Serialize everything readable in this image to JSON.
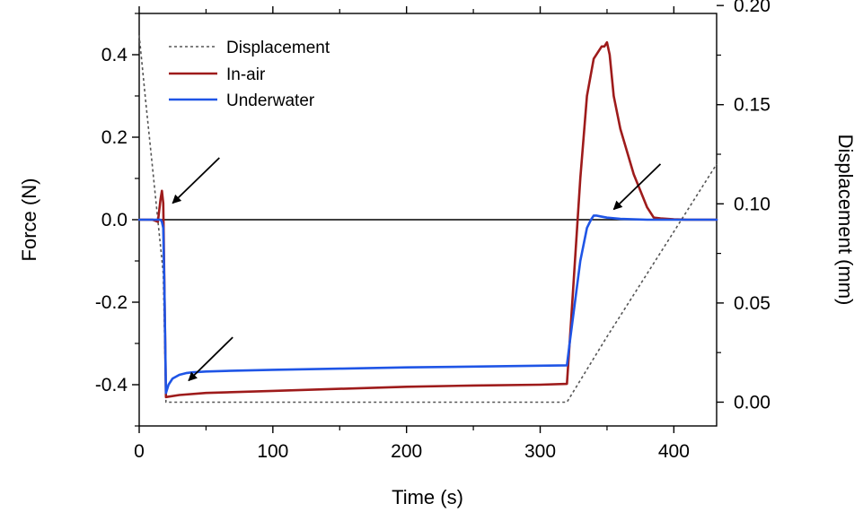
{
  "chart_data": {
    "type": "line",
    "xlabel": "Time (s)",
    "ylabel": "Force (N)",
    "y2label": "Displacement (mm)",
    "xlim": [
      0,
      432
    ],
    "ylim": [
      -0.5,
      0.5
    ],
    "y2lim": [
      -0.012,
      0.196
    ],
    "xticks": [
      0,
      100,
      200,
      300,
      400
    ],
    "xtick_labels": [
      "0",
      "100",
      "200",
      "300",
      "400"
    ],
    "yticks": [
      0.4,
      0.2,
      0.0,
      -0.2,
      -0.4
    ],
    "ytick_labels": [
      "0.4",
      "0.2",
      "0.0",
      "-0.2",
      "-0.4"
    ],
    "y2ticks": [
      0.2,
      0.15,
      0.1,
      0.05,
      0.0
    ],
    "y2tick_labels": [
      "0.20",
      "0.15",
      "0.10",
      "0.05",
      "0.00"
    ],
    "grid": false,
    "legend_position": "top-left",
    "reference_line_y": 0.0,
    "series": [
      {
        "name": "Displacement",
        "axis": "right",
        "style": "dotted",
        "color": "#555555",
        "x": [
          0,
          5,
          10,
          15,
          18,
          20,
          100,
          200,
          320,
          350,
          400,
          432
        ],
        "y": [
          0.185,
          0.151,
          0.118,
          0.085,
          0.065,
          0.0,
          0.0,
          0.0,
          0.0,
          0.033,
          0.086,
          0.12
        ]
      },
      {
        "name": "In-air",
        "axis": "left",
        "style": "solid",
        "color": "#9e1b1b",
        "x": [
          0,
          10,
          14,
          16,
          17,
          18,
          19,
          20,
          30,
          50,
          100,
          150,
          200,
          250,
          300,
          320,
          322,
          330,
          335,
          340,
          344,
          346,
          348,
          350,
          352,
          355,
          360,
          370,
          380,
          385,
          390,
          400,
          410,
          420,
          432
        ],
        "y": [
          0.0,
          0.0,
          -0.005,
          0.05,
          0.07,
          0.04,
          -0.2,
          -0.43,
          -0.425,
          -0.42,
          -0.415,
          -0.41,
          -0.405,
          -0.402,
          -0.4,
          -0.398,
          -0.3,
          0.1,
          0.3,
          0.39,
          0.41,
          0.42,
          0.42,
          0.43,
          0.4,
          0.3,
          0.22,
          0.11,
          0.03,
          0.005,
          0.003,
          0.001,
          0.0,
          0.0,
          0.0
        ]
      },
      {
        "name": "Underwater",
        "axis": "left",
        "style": "solid",
        "color": "#1f55e6",
        "x": [
          0,
          10,
          14,
          16,
          17,
          18,
          19,
          20,
          22,
          25,
          30,
          35,
          40,
          50,
          70,
          100,
          150,
          200,
          250,
          300,
          320,
          322,
          330,
          335,
          338,
          340,
          342,
          345,
          350,
          360,
          380,
          400,
          432
        ],
        "y": [
          0.0,
          0.0,
          0.0,
          0.0,
          -0.005,
          -0.02,
          -0.2,
          -0.42,
          -0.4,
          -0.385,
          -0.376,
          -0.372,
          -0.37,
          -0.368,
          -0.366,
          -0.364,
          -0.361,
          -0.358,
          -0.356,
          -0.354,
          -0.353,
          -0.3,
          -0.1,
          -0.02,
          0.0,
          0.01,
          0.01,
          0.008,
          0.005,
          0.002,
          0.0,
          0.0,
          0.0
        ]
      }
    ],
    "annotations": [
      {
        "type": "arrow",
        "from": [
          60,
          0.15
        ],
        "to": [
          25,
          0.04
        ]
      },
      {
        "type": "arrow",
        "from": [
          70,
          -0.285
        ],
        "to": [
          37,
          -0.39
        ]
      },
      {
        "type": "arrow",
        "from": [
          390,
          0.135
        ],
        "to": [
          355,
          0.025
        ]
      }
    ]
  }
}
